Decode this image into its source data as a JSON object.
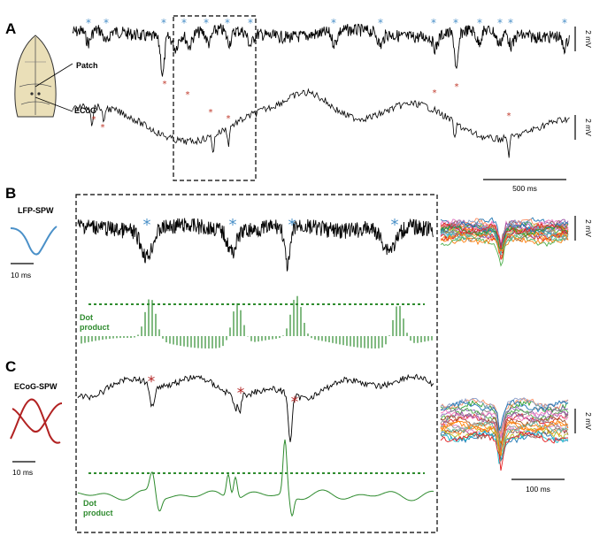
{
  "panels": {
    "a": {
      "letter": "A",
      "patch_label": "Patch",
      "ecog_label": "ECoG",
      "scale_patch": "2 mV",
      "scale_ecog": "2 mV",
      "time_scale": "500 ms"
    },
    "b": {
      "letter": "B",
      "title": "LFP-SPW",
      "template_scale": "10 ms",
      "dot_label_1": "Dot",
      "dot_label_2": "product",
      "overlay_scale": "2 mV"
    },
    "c": {
      "letter": "C",
      "title": "ECoG-SPW",
      "template_scale": "10 ms",
      "dot_label_1": "Dot",
      "dot_label_2": "product",
      "overlay_scale": "2 mV",
      "time_scale": "100 ms"
    }
  },
  "markers": {
    "blue_star": "*",
    "red_star": "*"
  },
  "colors": {
    "blue": "#4a90c8",
    "red": "#b22222",
    "green": "#2e8b2e",
    "trace": "#000000",
    "skull": "#eadfb8"
  },
  "icons": {
    "brain": "rat-skull-icon"
  }
}
